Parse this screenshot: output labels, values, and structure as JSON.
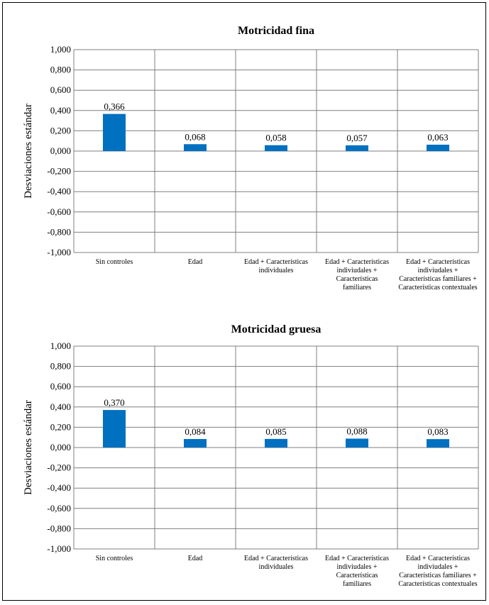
{
  "colors": {
    "bar": "#0070C0",
    "grid": "#7f7f7f",
    "axis": "#000000"
  },
  "chart_data": [
    {
      "type": "bar",
      "title": "Motricidad fina",
      "ylabel": "Desviaciones estándar",
      "xlabel": "",
      "ylim": [
        -1.0,
        1.0
      ],
      "yticks": [
        "1,000",
        "0,800",
        "0,600",
        "0,400",
        "0,200",
        "0,000",
        "-0,200",
        "-0,400",
        "-0,600",
        "-0,800",
        "-1,000"
      ],
      "categories": [
        [
          "Sin controles"
        ],
        [
          "Edad"
        ],
        [
          "Edad + Características",
          "individuales"
        ],
        [
          "Edad + Características",
          "indiviudales +",
          "Características",
          "familiares"
        ],
        [
          "Edad + Características",
          "indiviudales +",
          "Características familiares +",
          "Características contextuales"
        ]
      ],
      "values": [
        0.366,
        0.068,
        0.058,
        0.057,
        0.063
      ],
      "value_labels": [
        "0,366",
        "0,068",
        "0,058",
        "0,057",
        "0,063"
      ],
      "grid": true
    },
    {
      "type": "bar",
      "title": "Motricidad gruesa",
      "ylabel": "Desviaciones estándar",
      "xlabel": "",
      "ylim": [
        -1.0,
        1.0
      ],
      "yticks": [
        "1,000",
        "0,800",
        "0,600",
        "0,400",
        "0,200",
        "0,000",
        "-0,200",
        "-0,400",
        "-0,600",
        "-0,800",
        "-1,000"
      ],
      "categories": [
        [
          "Sin controles"
        ],
        [
          "Edad"
        ],
        [
          "Edad + Características",
          "individuales"
        ],
        [
          "Edad + Características",
          "indiviudales +",
          "Características",
          "familiares"
        ],
        [
          "Edad + Características",
          "indiviudales +",
          "Características familiares +",
          "Características contextuales"
        ]
      ],
      "values": [
        0.37,
        0.084,
        0.085,
        0.088,
        0.083
      ],
      "value_labels": [
        "0,370",
        "0,084",
        "0,085",
        "0,088",
        "0,083"
      ],
      "grid": true
    }
  ]
}
